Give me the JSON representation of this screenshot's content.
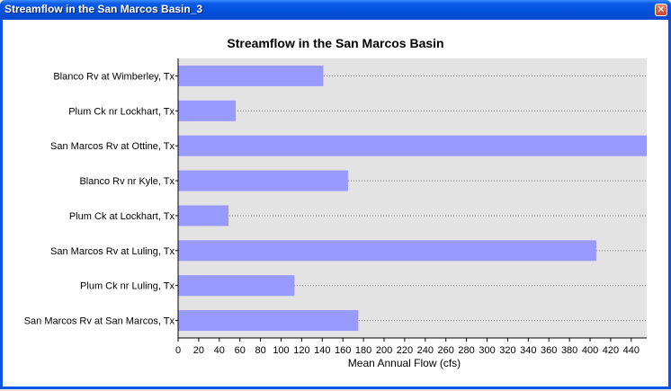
{
  "window": {
    "title": "Streamflow in the San Marcos Basin_3",
    "close_glyph": "✕"
  },
  "colors": {
    "bar": "#9999FF",
    "plot_bg": "#E3E3E3",
    "grid": "#777777"
  },
  "chart_data": {
    "type": "bar",
    "orientation": "horizontal",
    "title": "Streamflow in the San Marcos Basin",
    "xlabel": "Mean Annual Flow (cfs)",
    "ylabel": "",
    "xlim": [
      0,
      455
    ],
    "xticks": [
      0,
      20,
      40,
      60,
      80,
      100,
      120,
      140,
      160,
      180,
      200,
      220,
      240,
      260,
      280,
      300,
      320,
      340,
      360,
      380,
      400,
      420,
      440
    ],
    "grid": "horizontal dotted",
    "categories": [
      "Blanco Rv at Wimberley, Tx",
      "Plum Ck nr Lockhart, Tx",
      "San Marcos Rv at Ottine, Tx",
      "Blanco Rv nr Kyle, Tx",
      "Plum Ck at Lockhart, Tx",
      "San Marcos Rv at Luling, Tx",
      "Plum Ck nr Luling, Tx",
      "San Marcos Rv at San Marcos, Tx"
    ],
    "values": [
      141,
      56,
      455,
      165,
      49,
      406,
      113,
      175
    ]
  }
}
